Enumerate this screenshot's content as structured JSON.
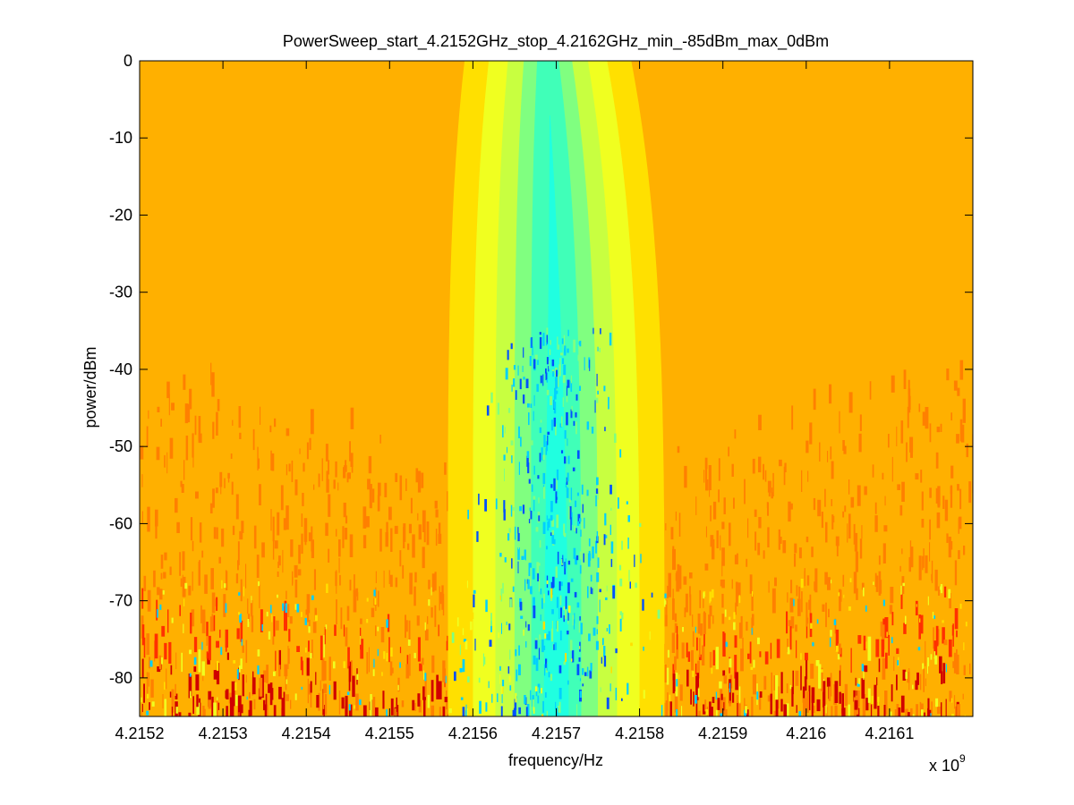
{
  "chart_data": {
    "type": "heatmap",
    "title": "PowerSweep_start_4.2152GHz_stop_4.2162GHz_min_-85dBm_max_0dBm",
    "xlabel": "frequency/Hz",
    "ylabel": "power/dBm",
    "x_exponent_label": "x 10",
    "x_exponent_power": "9",
    "x_range_GHz": [
      4.2152,
      4.2162
    ],
    "x_ticks": [
      "4.2152",
      "4.2153",
      "4.2154",
      "4.2155",
      "4.2156",
      "4.2157",
      "4.2158",
      "4.2159",
      "4.216",
      "4.2161"
    ],
    "x_tick_values_GHz": [
      4.2152,
      4.2153,
      4.2154,
      4.2155,
      4.2156,
      4.2157,
      4.2158,
      4.2159,
      4.216,
      4.2161
    ],
    "y_range_dBm": [
      -85,
      0
    ],
    "y_ticks": [
      "0",
      "-10",
      "-20",
      "-30",
      "-40",
      "-50",
      "-60",
      "-70",
      "-80"
    ],
    "y_tick_values_dBm": [
      0,
      -10,
      -20,
      -30,
      -40,
      -50,
      -60,
      -70,
      -80
    ],
    "grid": false,
    "colormap": "jet",
    "colors": {
      "background": "#ffb000",
      "noise_orange": "#ff8000",
      "noise_red": "#ff3000",
      "noise_deep": "#d00000",
      "band_yellow": "#ffe000",
      "band_lightyellow": "#f0ff20",
      "band_lime": "#c8ff40",
      "band_green": "#80ff80",
      "band_aqua": "#40ffb8",
      "band_cyan": "#20ffe0",
      "speck_cyan": "#00d0ff",
      "speck_blue": "#0050ff"
    },
    "resonance": {
      "center_GHz_at_high_power": 4.21569,
      "center_GHz_at_low_power": 4.2157,
      "dip_level_order": [
        "yellow",
        "lightyellow",
        "lime",
        "green",
        "aqua",
        "cyan"
      ],
      "dip_half_widths_GHz_low_power": [
        0.00013,
        0.0001,
        7.3e-05,
        5e-05,
        3e-05,
        1.5e-05
      ],
      "dip_half_widths_GHz_high_power": [
        0.0001,
        7.1e-05,
        4.8e-05,
        2.9e-05,
        1.3e-05,
        0.0
      ]
    },
    "noise_onset_dBm": -45
  }
}
